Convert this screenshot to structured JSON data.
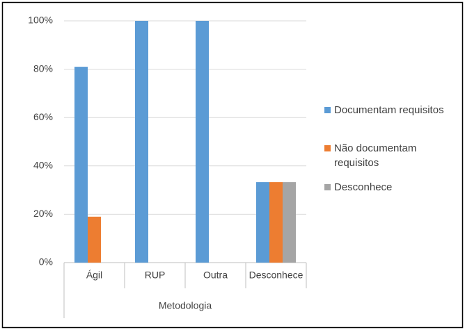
{
  "chart_data": {
    "type": "bar",
    "x_label": "Metodologia",
    "categories": [
      "Ágil",
      "RUP",
      "Outra",
      "Desconhece"
    ],
    "series": [
      {
        "name": "Documentam requisitos",
        "color": "#5b9bd5",
        "values": [
          81,
          100,
          100,
          33.3
        ]
      },
      {
        "name": "Não documentam requisitos",
        "color": "#ed7d31",
        "values": [
          19,
          0,
          0,
          33.3
        ]
      },
      {
        "name": "Desconhece",
        "color": "#a5a5a5",
        "values": [
          0,
          0,
          0,
          33.3
        ]
      }
    ],
    "ylim": [
      0,
      100
    ],
    "yticks": [
      {
        "value": 0,
        "label": "0%"
      },
      {
        "value": 20,
        "label": "20%"
      },
      {
        "value": 40,
        "label": "40%"
      },
      {
        "value": 60,
        "label": "60%"
      },
      {
        "value": 80,
        "label": "80%"
      },
      {
        "value": 100,
        "label": "100%"
      }
    ],
    "grid": true,
    "legend": "right"
  }
}
